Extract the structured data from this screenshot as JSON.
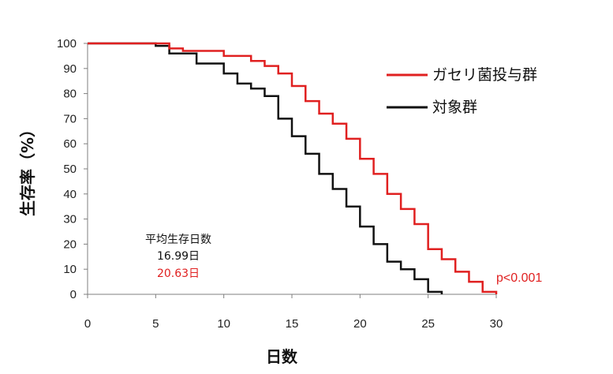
{
  "chart_data": {
    "type": "line",
    "step": true,
    "xlabel": "日数",
    "ylabel": "生存率（%）",
    "xlim": [
      0,
      30
    ],
    "ylim": [
      0,
      100
    ],
    "xticks": [
      "0",
      "5",
      "10",
      "15",
      "20",
      "25",
      "30"
    ],
    "yticks": [
      "0",
      "10",
      "20",
      "30",
      "40",
      "50",
      "60",
      "70",
      "80",
      "90",
      "100"
    ],
    "grid": false,
    "legend_position": "top-right",
    "series": [
      {
        "name": "ガセリ菌投与群",
        "color": "#e02020",
        "x": [
          0,
          6,
          7,
          8,
          10,
          12,
          13,
          14,
          15,
          16,
          17,
          18,
          19,
          20,
          21,
          22,
          23,
          24,
          25,
          26,
          27,
          28,
          29,
          30
        ],
        "y": [
          100,
          98,
          97,
          97,
          95,
          93,
          91,
          88,
          83,
          77,
          72,
          68,
          62,
          54,
          48,
          40,
          34,
          28,
          18,
          14,
          9,
          5,
          1,
          0
        ]
      },
      {
        "name": "対象群",
        "color": "#111111",
        "x": [
          0,
          5,
          6,
          8,
          10,
          11,
          12,
          13,
          14,
          15,
          16,
          17,
          18,
          19,
          20,
          21,
          22,
          23,
          24,
          25,
          26
        ],
        "y": [
          100,
          99,
          96,
          92,
          88,
          84,
          82,
          79,
          70,
          63,
          56,
          48,
          42,
          35,
          27,
          20,
          13,
          10,
          6,
          1,
          0
        ]
      }
    ],
    "annotations": {
      "mean_title": "平均生存日数",
      "control_mean": "16.99日",
      "treated_mean": "20.63日",
      "p_value": "p<0.001"
    }
  },
  "colors": {
    "treated": "#e02020",
    "control": "#111111",
    "axis": "#7f7f7f"
  }
}
